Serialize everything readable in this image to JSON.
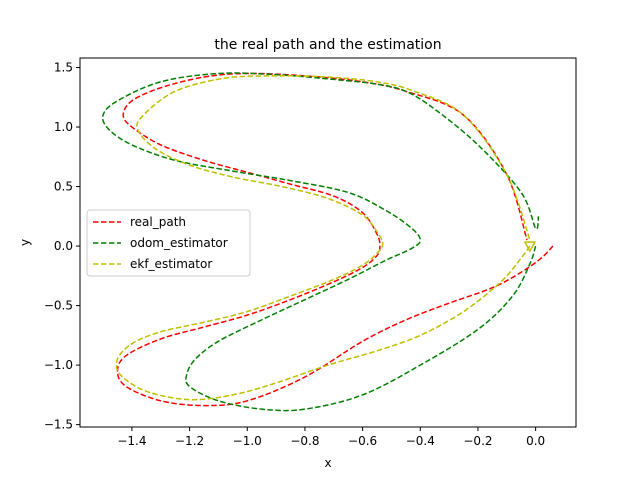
{
  "chart_data": {
    "type": "line",
    "title": "the real path and the estimation",
    "xlabel": "x",
    "ylabel": "y",
    "xlim": [
      -1.58,
      0.14
    ],
    "ylim": [
      -1.52,
      1.58
    ],
    "xticks": [
      -1.4,
      -1.2,
      -1.0,
      -0.8,
      -0.6,
      -0.4,
      -0.2,
      0.0
    ],
    "xtick_labels": [
      "−1.4",
      "−1.2",
      "−1.0",
      "−0.8",
      "−0.6",
      "−0.4",
      "−0.2",
      "0.0"
    ],
    "yticks": [
      -1.5,
      -1.0,
      -0.5,
      0.0,
      0.5,
      1.0,
      1.5
    ],
    "ytick_labels": [
      "−1.5",
      "−1.0",
      "−0.5",
      "0.0",
      "0.5",
      "1.0",
      "1.5"
    ],
    "grid": false,
    "legend_position": "center-left",
    "series": [
      {
        "name": "real_path",
        "color": "#ff0000",
        "dash": "dashed",
        "x": [
          0.06,
          0.02,
          -0.05,
          -0.15,
          -0.3,
          -0.45,
          -0.6,
          -0.8,
          -1.0,
          -1.15,
          -1.3,
          -1.42,
          -1.45,
          -1.42,
          -1.3,
          -1.15,
          -1.0,
          -0.85,
          -0.7,
          -0.6,
          -0.55,
          -0.54,
          -0.55,
          -0.6,
          -0.7,
          -0.85,
          -1.0,
          -1.15,
          -1.3,
          -1.4,
          -1.43,
          -1.4,
          -1.3,
          -1.15,
          -1.0,
          -0.8,
          -0.6,
          -0.45,
          -0.25,
          -0.1,
          -0.03
        ],
        "y": [
          0.0,
          -0.1,
          -0.22,
          -0.35,
          -0.48,
          -0.62,
          -0.8,
          -1.1,
          -1.3,
          -1.34,
          -1.3,
          -1.18,
          -1.05,
          -0.92,
          -0.78,
          -0.68,
          -0.58,
          -0.45,
          -0.3,
          -0.18,
          -0.08,
          0.0,
          0.1,
          0.28,
          0.42,
          0.52,
          0.62,
          0.72,
          0.85,
          1.0,
          1.1,
          1.22,
          1.33,
          1.42,
          1.45,
          1.43,
          1.38,
          1.3,
          1.1,
          0.6,
          0.05
        ]
      },
      {
        "name": "odom_estimator",
        "color": "#008000",
        "dash": "dashed",
        "x": [
          0.0,
          -0.02,
          -0.08,
          -0.2,
          -0.4,
          -0.6,
          -0.8,
          -0.95,
          -1.1,
          -1.2,
          -1.21,
          -1.18,
          -1.1,
          -0.95,
          -0.8,
          -0.65,
          -0.52,
          -0.43,
          -0.4,
          -0.43,
          -0.52,
          -0.65,
          -0.85,
          -1.05,
          -1.25,
          -1.4,
          -1.48,
          -1.5,
          -1.45,
          -1.3,
          -1.1,
          -0.9,
          -0.7,
          -0.55,
          -0.45,
          -0.35,
          -0.2,
          -0.05,
          0.0,
          0.01
        ],
        "y": [
          0.0,
          -0.15,
          -0.42,
          -0.7,
          -1.0,
          -1.25,
          -1.37,
          -1.37,
          -1.3,
          -1.18,
          -1.08,
          -0.95,
          -0.8,
          -0.62,
          -0.45,
          -0.28,
          -0.12,
          -0.02,
          0.05,
          0.15,
          0.3,
          0.45,
          0.55,
          0.63,
          0.72,
          0.85,
          0.98,
          1.1,
          1.22,
          1.38,
          1.45,
          1.44,
          1.4,
          1.36,
          1.3,
          1.15,
          0.85,
          0.45,
          0.15,
          0.25
        ]
      },
      {
        "name": "ekf_estimator",
        "color": "#bfbf00",
        "dash": "dashed",
        "x": [
          -0.02,
          -0.05,
          -0.12,
          -0.25,
          -0.4,
          -0.55,
          -0.72,
          -0.9,
          -1.05,
          -1.2,
          -1.35,
          -1.44,
          -1.45,
          -1.4,
          -1.3,
          -1.15,
          -1.0,
          -0.85,
          -0.7,
          -0.6,
          -0.55,
          -0.53,
          -0.55,
          -0.6,
          -0.72,
          -0.88,
          -1.05,
          -1.2,
          -1.32,
          -1.38,
          -1.36,
          -1.25,
          -1.08,
          -0.9,
          -0.72,
          -0.55,
          -0.42,
          -0.25,
          -0.1,
          -0.02
        ],
        "y": [
          0.0,
          -0.1,
          -0.3,
          -0.55,
          -0.75,
          -0.88,
          -1.0,
          -1.15,
          -1.25,
          -1.29,
          -1.22,
          -1.08,
          -0.95,
          -0.82,
          -0.72,
          -0.64,
          -0.55,
          -0.42,
          -0.28,
          -0.16,
          -0.06,
          0.02,
          0.12,
          0.26,
          0.4,
          0.5,
          0.58,
          0.68,
          0.82,
          0.98,
          1.1,
          1.3,
          1.41,
          1.43,
          1.42,
          1.38,
          1.3,
          1.1,
          0.6,
          0.05
        ]
      }
    ]
  }
}
